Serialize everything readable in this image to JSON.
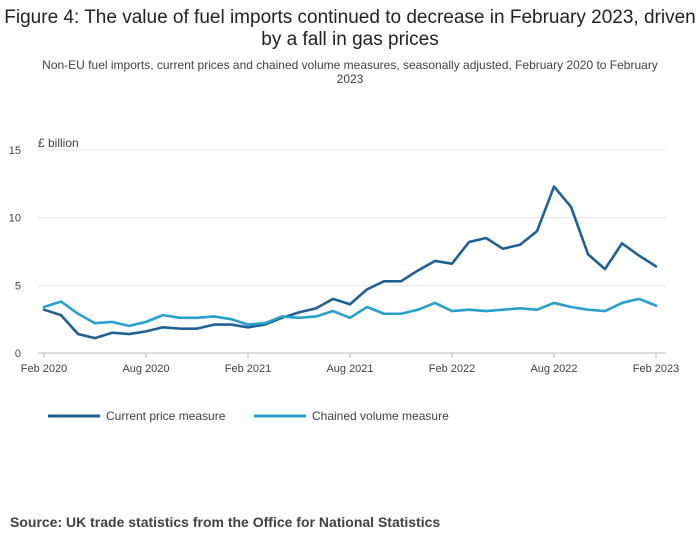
{
  "title": "Figure 4: The value of fuel imports continued to decrease in February 2023, driven by a fall in gas prices",
  "subtitle": "Non-EU fuel imports, current prices and chained volume measures, seasonally adjusted, February 2020 to February 2023",
  "source": "Source: UK trade statistics from the Office for National Statistics",
  "colors": {
    "current": "#206095",
    "chained": "#27a0cc",
    "grid": "#e6e6e6",
    "axis": "#bbbbbb"
  },
  "chart_data": {
    "type": "line",
    "title": "Figure 4: The value of fuel imports continued to decrease in February 2023, driven by a fall in gas prices",
    "ylabel": "£ billion",
    "xlabel": "",
    "ylim": [
      0,
      15
    ],
    "yticks": [
      0,
      5,
      10,
      15
    ],
    "ytick_labels": [
      "0",
      "5",
      "10",
      "15"
    ],
    "xticks": [
      {
        "index": 0,
        "label": "Feb 2020"
      },
      {
        "index": 6,
        "label": "Aug 2020"
      },
      {
        "index": 12,
        "label": "Feb 2021"
      },
      {
        "index": 18,
        "label": "Aug 2021"
      },
      {
        "index": 24,
        "label": "Feb 2022"
      },
      {
        "index": 30,
        "label": "Aug 2022"
      },
      {
        "index": 36,
        "label": "Feb 2023"
      }
    ],
    "x": [
      "Feb 2020",
      "Mar 2020",
      "Apr 2020",
      "May 2020",
      "Jun 2020",
      "Jul 2020",
      "Aug 2020",
      "Sep 2020",
      "Oct 2020",
      "Nov 2020",
      "Dec 2020",
      "Jan 2021",
      "Feb 2021",
      "Mar 2021",
      "Apr 2021",
      "May 2021",
      "Jun 2021",
      "Jul 2021",
      "Aug 2021",
      "Sep 2021",
      "Oct 2021",
      "Nov 2021",
      "Dec 2021",
      "Jan 2022",
      "Feb 2022",
      "Mar 2022",
      "Apr 2022",
      "May 2022",
      "Jun 2022",
      "Jul 2022",
      "Aug 2022",
      "Sep 2022",
      "Oct 2022",
      "Nov 2022",
      "Dec 2022",
      "Jan 2023",
      "Feb 2023"
    ],
    "series": [
      {
        "name": "Current price measure",
        "color": "#206095",
        "values": [
          3.2,
          2.8,
          1.4,
          1.1,
          1.5,
          1.4,
          1.6,
          1.9,
          1.8,
          1.8,
          2.1,
          2.1,
          1.9,
          2.1,
          2.6,
          3.0,
          3.3,
          4.0,
          3.6,
          4.7,
          5.3,
          5.3,
          6.1,
          6.8,
          6.6,
          8.2,
          8.5,
          7.7,
          8.0,
          9.0,
          12.3,
          10.8,
          7.3,
          6.2,
          8.1,
          7.2,
          6.4
        ]
      },
      {
        "name": "Chained volume measure",
        "color": "#27a0cc",
        "values": [
          3.4,
          3.8,
          2.9,
          2.2,
          2.3,
          2.0,
          2.3,
          2.8,
          2.6,
          2.6,
          2.7,
          2.5,
          2.1,
          2.2,
          2.7,
          2.6,
          2.7,
          3.1,
          2.6,
          3.4,
          2.9,
          2.9,
          3.2,
          3.7,
          3.1,
          3.2,
          3.1,
          3.2,
          3.3,
          3.2,
          3.7,
          3.4,
          3.2,
          3.1,
          3.7,
          4.0,
          3.5
        ]
      }
    ]
  }
}
